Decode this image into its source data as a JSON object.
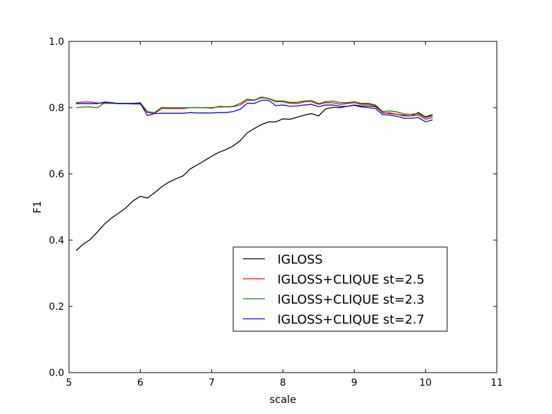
{
  "chart_data": {
    "type": "line",
    "xlabel": "scale",
    "ylabel": "F1",
    "xlim": [
      5,
      11
    ],
    "ylim": [
      0.0,
      1.0
    ],
    "xticks": [
      "5",
      "6",
      "7",
      "8",
      "9",
      "10",
      "11"
    ],
    "yticks": [
      "0.0",
      "0.2",
      "0.4",
      "0.6",
      "0.8",
      "1.0"
    ],
    "grid": false,
    "legend_position": "lower-right",
    "x": [
      5.1,
      5.2,
      5.3,
      5.4,
      5.5,
      5.6,
      5.7,
      5.8,
      5.9,
      6.0,
      6.1,
      6.2,
      6.3,
      6.4,
      6.5,
      6.6,
      6.7,
      6.8,
      6.9,
      7.0,
      7.1,
      7.2,
      7.3,
      7.4,
      7.5,
      7.6,
      7.7,
      7.8,
      7.9,
      8.0,
      8.1,
      8.2,
      8.3,
      8.4,
      8.5,
      8.6,
      8.7,
      8.8,
      8.9,
      9.0,
      9.1,
      9.2,
      9.3,
      9.4,
      9.5,
      9.6,
      9.7,
      9.8,
      9.9,
      10.0,
      10.1
    ],
    "series": [
      {
        "name": "IGLOSS",
        "color": "#000000",
        "values": [
          0.368,
          0.388,
          0.402,
          0.425,
          0.449,
          0.467,
          0.482,
          0.498,
          0.519,
          0.532,
          0.527,
          0.543,
          0.561,
          0.575,
          0.585,
          0.594,
          0.615,
          0.627,
          0.64,
          0.653,
          0.665,
          0.673,
          0.684,
          0.7,
          0.724,
          0.737,
          0.749,
          0.757,
          0.757,
          0.766,
          0.765,
          0.771,
          0.777,
          0.782,
          0.775,
          0.796,
          0.801,
          0.8,
          0.804,
          0.808,
          0.805,
          0.805,
          0.803,
          0.785,
          0.782,
          0.78,
          0.777,
          0.775,
          0.785,
          0.772,
          0.779
        ]
      },
      {
        "name": "IGLOSS+CLIQUE st=2.5",
        "color": "#ff0000",
        "values": [
          0.815,
          0.817,
          0.817,
          0.814,
          0.813,
          0.813,
          0.812,
          0.812,
          0.811,
          0.811,
          0.785,
          0.782,
          0.797,
          0.797,
          0.797,
          0.797,
          0.8,
          0.8,
          0.8,
          0.8,
          0.802,
          0.802,
          0.803,
          0.808,
          0.822,
          0.822,
          0.83,
          0.827,
          0.818,
          0.818,
          0.813,
          0.812,
          0.818,
          0.818,
          0.81,
          0.815,
          0.815,
          0.81,
          0.812,
          0.815,
          0.81,
          0.81,
          0.806,
          0.784,
          0.784,
          0.78,
          0.775,
          0.775,
          0.778,
          0.765,
          0.77
        ]
      },
      {
        "name": "IGLOSS+CLIQUE st=2.3",
        "color": "#008000",
        "values": [
          0.8,
          0.802,
          0.802,
          0.8,
          0.815,
          0.813,
          0.813,
          0.813,
          0.813,
          0.815,
          0.788,
          0.785,
          0.801,
          0.8,
          0.8,
          0.8,
          0.8,
          0.8,
          0.8,
          0.798,
          0.804,
          0.803,
          0.804,
          0.813,
          0.826,
          0.823,
          0.832,
          0.828,
          0.82,
          0.82,
          0.816,
          0.816,
          0.82,
          0.822,
          0.812,
          0.818,
          0.82,
          0.815,
          0.815,
          0.818,
          0.813,
          0.813,
          0.808,
          0.788,
          0.79,
          0.787,
          0.781,
          0.78,
          0.782,
          0.77,
          0.775
        ]
      },
      {
        "name": "IGLOSS+CLIQUE st=2.7",
        "color": "#0000ff",
        "values": [
          0.812,
          0.812,
          0.812,
          0.812,
          0.817,
          0.815,
          0.812,
          0.812,
          0.812,
          0.813,
          0.776,
          0.782,
          0.783,
          0.783,
          0.783,
          0.783,
          0.785,
          0.784,
          0.784,
          0.784,
          0.785,
          0.785,
          0.788,
          0.795,
          0.813,
          0.813,
          0.822,
          0.822,
          0.806,
          0.808,
          0.804,
          0.805,
          0.808,
          0.81,
          0.803,
          0.808,
          0.808,
          0.804,
          0.804,
          0.807,
          0.802,
          0.8,
          0.797,
          0.779,
          0.777,
          0.774,
          0.768,
          0.768,
          0.77,
          0.757,
          0.763
        ]
      }
    ]
  }
}
